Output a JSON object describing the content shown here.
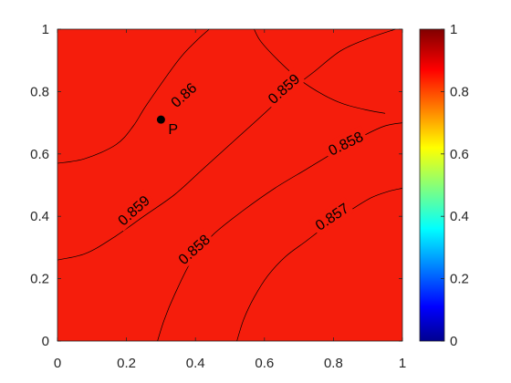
{
  "chart_data": {
    "type": "heatmap",
    "subtype": "filled-contour",
    "title": "",
    "xlabel": "",
    "ylabel": "",
    "xlim": [
      0,
      1
    ],
    "ylim": [
      0,
      1
    ],
    "x_ticks": [
      "0",
      "0.2",
      "0.4",
      "0.6",
      "0.8",
      "1"
    ],
    "y_ticks": [
      "0",
      "0.2",
      "0.4",
      "0.6",
      "0.8",
      "1"
    ],
    "grid": false,
    "fill_color": "#f51d0c",
    "colormap": "jet",
    "colorbar": {
      "range": [
        0,
        1
      ],
      "ticks": [
        "0",
        "0.2",
        "0.4",
        "0.6",
        "0.8",
        "1"
      ],
      "placement": "right"
    },
    "contours": [
      {
        "level": "0.86",
        "points": [
          [
            0,
            0.57
          ],
          [
            0.08,
            0.585
          ],
          [
            0.17,
            0.63
          ],
          [
            0.22,
            0.69
          ],
          [
            0.26,
            0.76
          ],
          [
            0.35,
            0.9
          ],
          [
            0.4,
            0.96
          ],
          [
            0.44,
            1.0
          ]
        ],
        "label_at": [
          0.365,
          0.79
        ],
        "label_angle": -42
      },
      {
        "level": "0.859",
        "points": [
          [
            0.57,
            1.0
          ],
          [
            0.59,
            0.96
          ],
          [
            0.64,
            0.9
          ],
          [
            0.7,
            0.84
          ],
          [
            0.77,
            0.79
          ],
          [
            0.83,
            0.76
          ],
          [
            0.9,
            0.74
          ],
          [
            0.95,
            0.73
          ]
        ],
        "label_at": [
          0.655,
          0.81
        ],
        "label_angle": -42
      },
      {
        "level": "0.859",
        "points": [
          [
            0,
            0.26
          ],
          [
            0.08,
            0.28
          ],
          [
            0.16,
            0.33
          ],
          [
            0.25,
            0.4
          ],
          [
            0.34,
            0.47
          ],
          [
            0.42,
            0.55
          ],
          [
            0.5,
            0.63
          ],
          [
            0.58,
            0.71
          ],
          [
            0.67,
            0.8
          ],
          [
            0.74,
            0.86
          ],
          [
            0.82,
            0.93
          ],
          [
            0.9,
            0.97
          ],
          [
            0.98,
            1.0
          ]
        ],
        "label_at": [
          0.22,
          0.42
        ],
        "label_angle": -42
      },
      {
        "level": "0.858",
        "points": [
          [
            0.29,
            0
          ],
          [
            0.31,
            0.07
          ],
          [
            0.34,
            0.15
          ],
          [
            0.39,
            0.26
          ],
          [
            0.45,
            0.34
          ],
          [
            0.54,
            0.42
          ],
          [
            0.63,
            0.49
          ],
          [
            0.72,
            0.55
          ],
          [
            0.81,
            0.61
          ],
          [
            0.89,
            0.66
          ],
          [
            0.95,
            0.69
          ],
          [
            1.0,
            0.7
          ]
        ],
        "label_at": [
          0.395,
          0.295
        ],
        "label_angle": -42,
        "label2_at": [
          0.835,
          0.635
        ],
        "label2_angle": -26
      },
      {
        "level": "0.857",
        "points": [
          [
            0.52,
            0
          ],
          [
            0.54,
            0.07
          ],
          [
            0.57,
            0.14
          ],
          [
            0.61,
            0.21
          ],
          [
            0.66,
            0.27
          ],
          [
            0.72,
            0.32
          ],
          [
            0.78,
            0.37
          ],
          [
            0.85,
            0.42
          ],
          [
            0.91,
            0.46
          ],
          [
            0.96,
            0.48
          ],
          [
            1.0,
            0.49
          ]
        ],
        "label_at": [
          0.795,
          0.4
        ],
        "label_angle": -34
      }
    ],
    "points": [
      {
        "label": "P",
        "x": 0.3,
        "y": 0.71
      }
    ]
  }
}
